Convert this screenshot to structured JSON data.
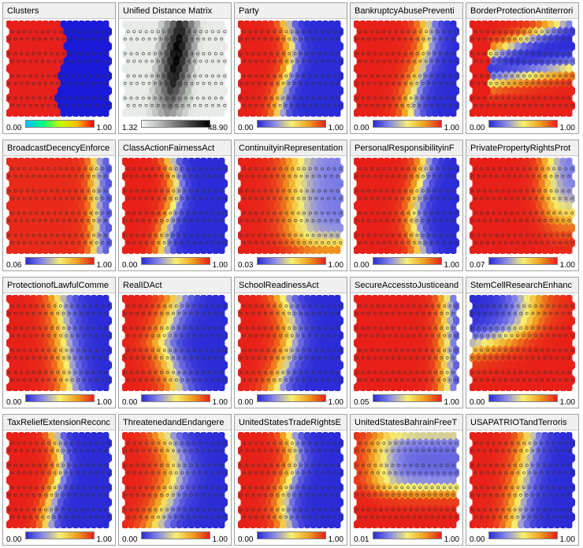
{
  "colors": {
    "red": "#e8201c",
    "blue": "#3a3ad8",
    "yellow": "#f0e020",
    "scale_standard": [
      "#2b2bd8",
      "#8a8ae8",
      "#f8f070",
      "#f0a020",
      "#e82018"
    ],
    "scale_clusters": [
      "#00c0ff",
      "#00ff80",
      "#c0ff00",
      "#ffc000",
      "#ff0000"
    ],
    "scale_distance": [
      "#f4f8f4",
      "#b8bcb8",
      "#787878",
      "#383838",
      "#000000"
    ]
  },
  "panels": [
    {
      "title": "Clusters",
      "min": "0.00",
      "max": "1.00",
      "scale": "clusters",
      "pattern": "clusters"
    },
    {
      "title": "Unified Distance Matrix",
      "min": "1.32",
      "max": "48.90",
      "scale": "distance",
      "pattern": "udist"
    },
    {
      "title": "Party",
      "min": "0.00",
      "max": "1.00",
      "scale": "standard",
      "pattern": "party"
    },
    {
      "title": "BankruptcyAbusePreventi",
      "min": "0.00",
      "max": "1.00",
      "scale": "standard",
      "pattern": "bankruptcy"
    },
    {
      "title": "BorderProtectionAntiterrori",
      "min": "0.00",
      "max": "1.00",
      "scale": "standard",
      "pattern": "border"
    },
    {
      "title": "BroadcastDecencyEnforce",
      "min": "0.06",
      "max": "1.00",
      "scale": "standard",
      "pattern": "broadcast"
    },
    {
      "title": "ClassActionFairnessAct",
      "min": "0.00",
      "max": "1.00",
      "scale": "standard",
      "pattern": "party"
    },
    {
      "title": "ContinuityinRepresentation",
      "min": "0.03",
      "max": "1.00",
      "scale": "standard",
      "pattern": "continuity"
    },
    {
      "title": "PersonalResponsibilityinF",
      "min": "0.00",
      "max": "1.00",
      "scale": "standard",
      "pattern": "personal"
    },
    {
      "title": "PrivatePropertyRightsProt",
      "min": "0.07",
      "max": "1.00",
      "scale": "standard",
      "pattern": "private"
    },
    {
      "title": "ProtectionofLawfulComme",
      "min": "0.00",
      "max": "1.00",
      "scale": "standard",
      "pattern": "protection"
    },
    {
      "title": "RealIDAct",
      "min": "0.00",
      "max": "1.00",
      "scale": "standard",
      "pattern": "realid"
    },
    {
      "title": "SchoolReadinessAct",
      "min": "0.00",
      "max": "1.00",
      "scale": "standard",
      "pattern": "school"
    },
    {
      "title": "SecureAccesstoJusticeand",
      "min": "0.05",
      "max": "1.00",
      "scale": "standard",
      "pattern": "secure"
    },
    {
      "title": "StemCellResearchEnhanc",
      "min": "0.00",
      "max": "1.00",
      "scale": "standard",
      "pattern": "stemcell"
    },
    {
      "title": "TaxReliefExtensionReconc",
      "min": "0.00",
      "max": "1.00",
      "scale": "standard",
      "pattern": "party"
    },
    {
      "title": "ThreatenedandEndangere",
      "min": "0.00",
      "max": "1.00",
      "scale": "standard",
      "pattern": "threatened"
    },
    {
      "title": "UnitedStatesTradeRightsE",
      "min": "0.00",
      "max": "1.00",
      "scale": "standard",
      "pattern": "trade"
    },
    {
      "title": "UnitedStatesBahrainFreeT",
      "min": "0.01",
      "max": "1.00",
      "scale": "standard",
      "pattern": "bahrain"
    },
    {
      "title": "USAPATRIOTandTerroris",
      "min": "0.00",
      "max": "1.00",
      "scale": "standard",
      "pattern": "patriot"
    }
  ]
}
